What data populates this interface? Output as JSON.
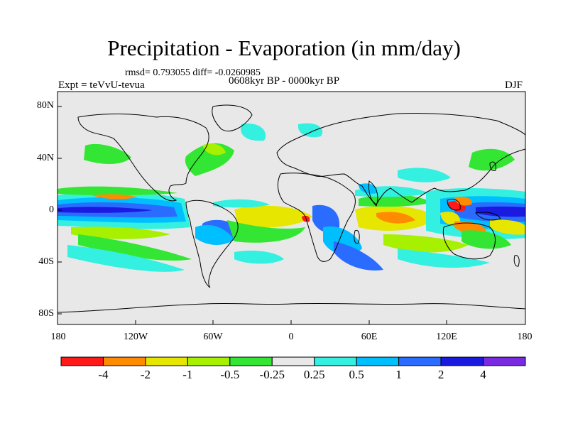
{
  "title": "Precipitation - Evaporation (in mm/day)",
  "stats": "rmsd= 0.793055  diff= -0.0260985",
  "period": "0608kyr BP - 0000kyr BP",
  "experiment": "Expt = teVvU-tevua",
  "season": "DJF",
  "y_ticks": [
    "80N",
    "40N",
    "0",
    "40S",
    "80S"
  ],
  "x_ticks": [
    "180",
    "120W",
    "60W",
    "0",
    "60E",
    "120E",
    "180"
  ],
  "colorbar": {
    "labels": [
      "-4",
      "-2",
      "-1",
      "-0.5",
      "-0.25",
      "0.25",
      "0.5",
      "1",
      "2",
      "4"
    ],
    "colors": [
      "#ff1a1a",
      "#ff8c00",
      "#e6e600",
      "#a6f000",
      "#33e633",
      "#e8e8e8",
      "#33f0e0",
      "#00bfff",
      "#2a6cff",
      "#1a1ae0",
      "#7a2ae0"
    ]
  },
  "map_colors": {
    "land_ocean_bg": "#e8e8e8",
    "coast": "#000000"
  }
}
